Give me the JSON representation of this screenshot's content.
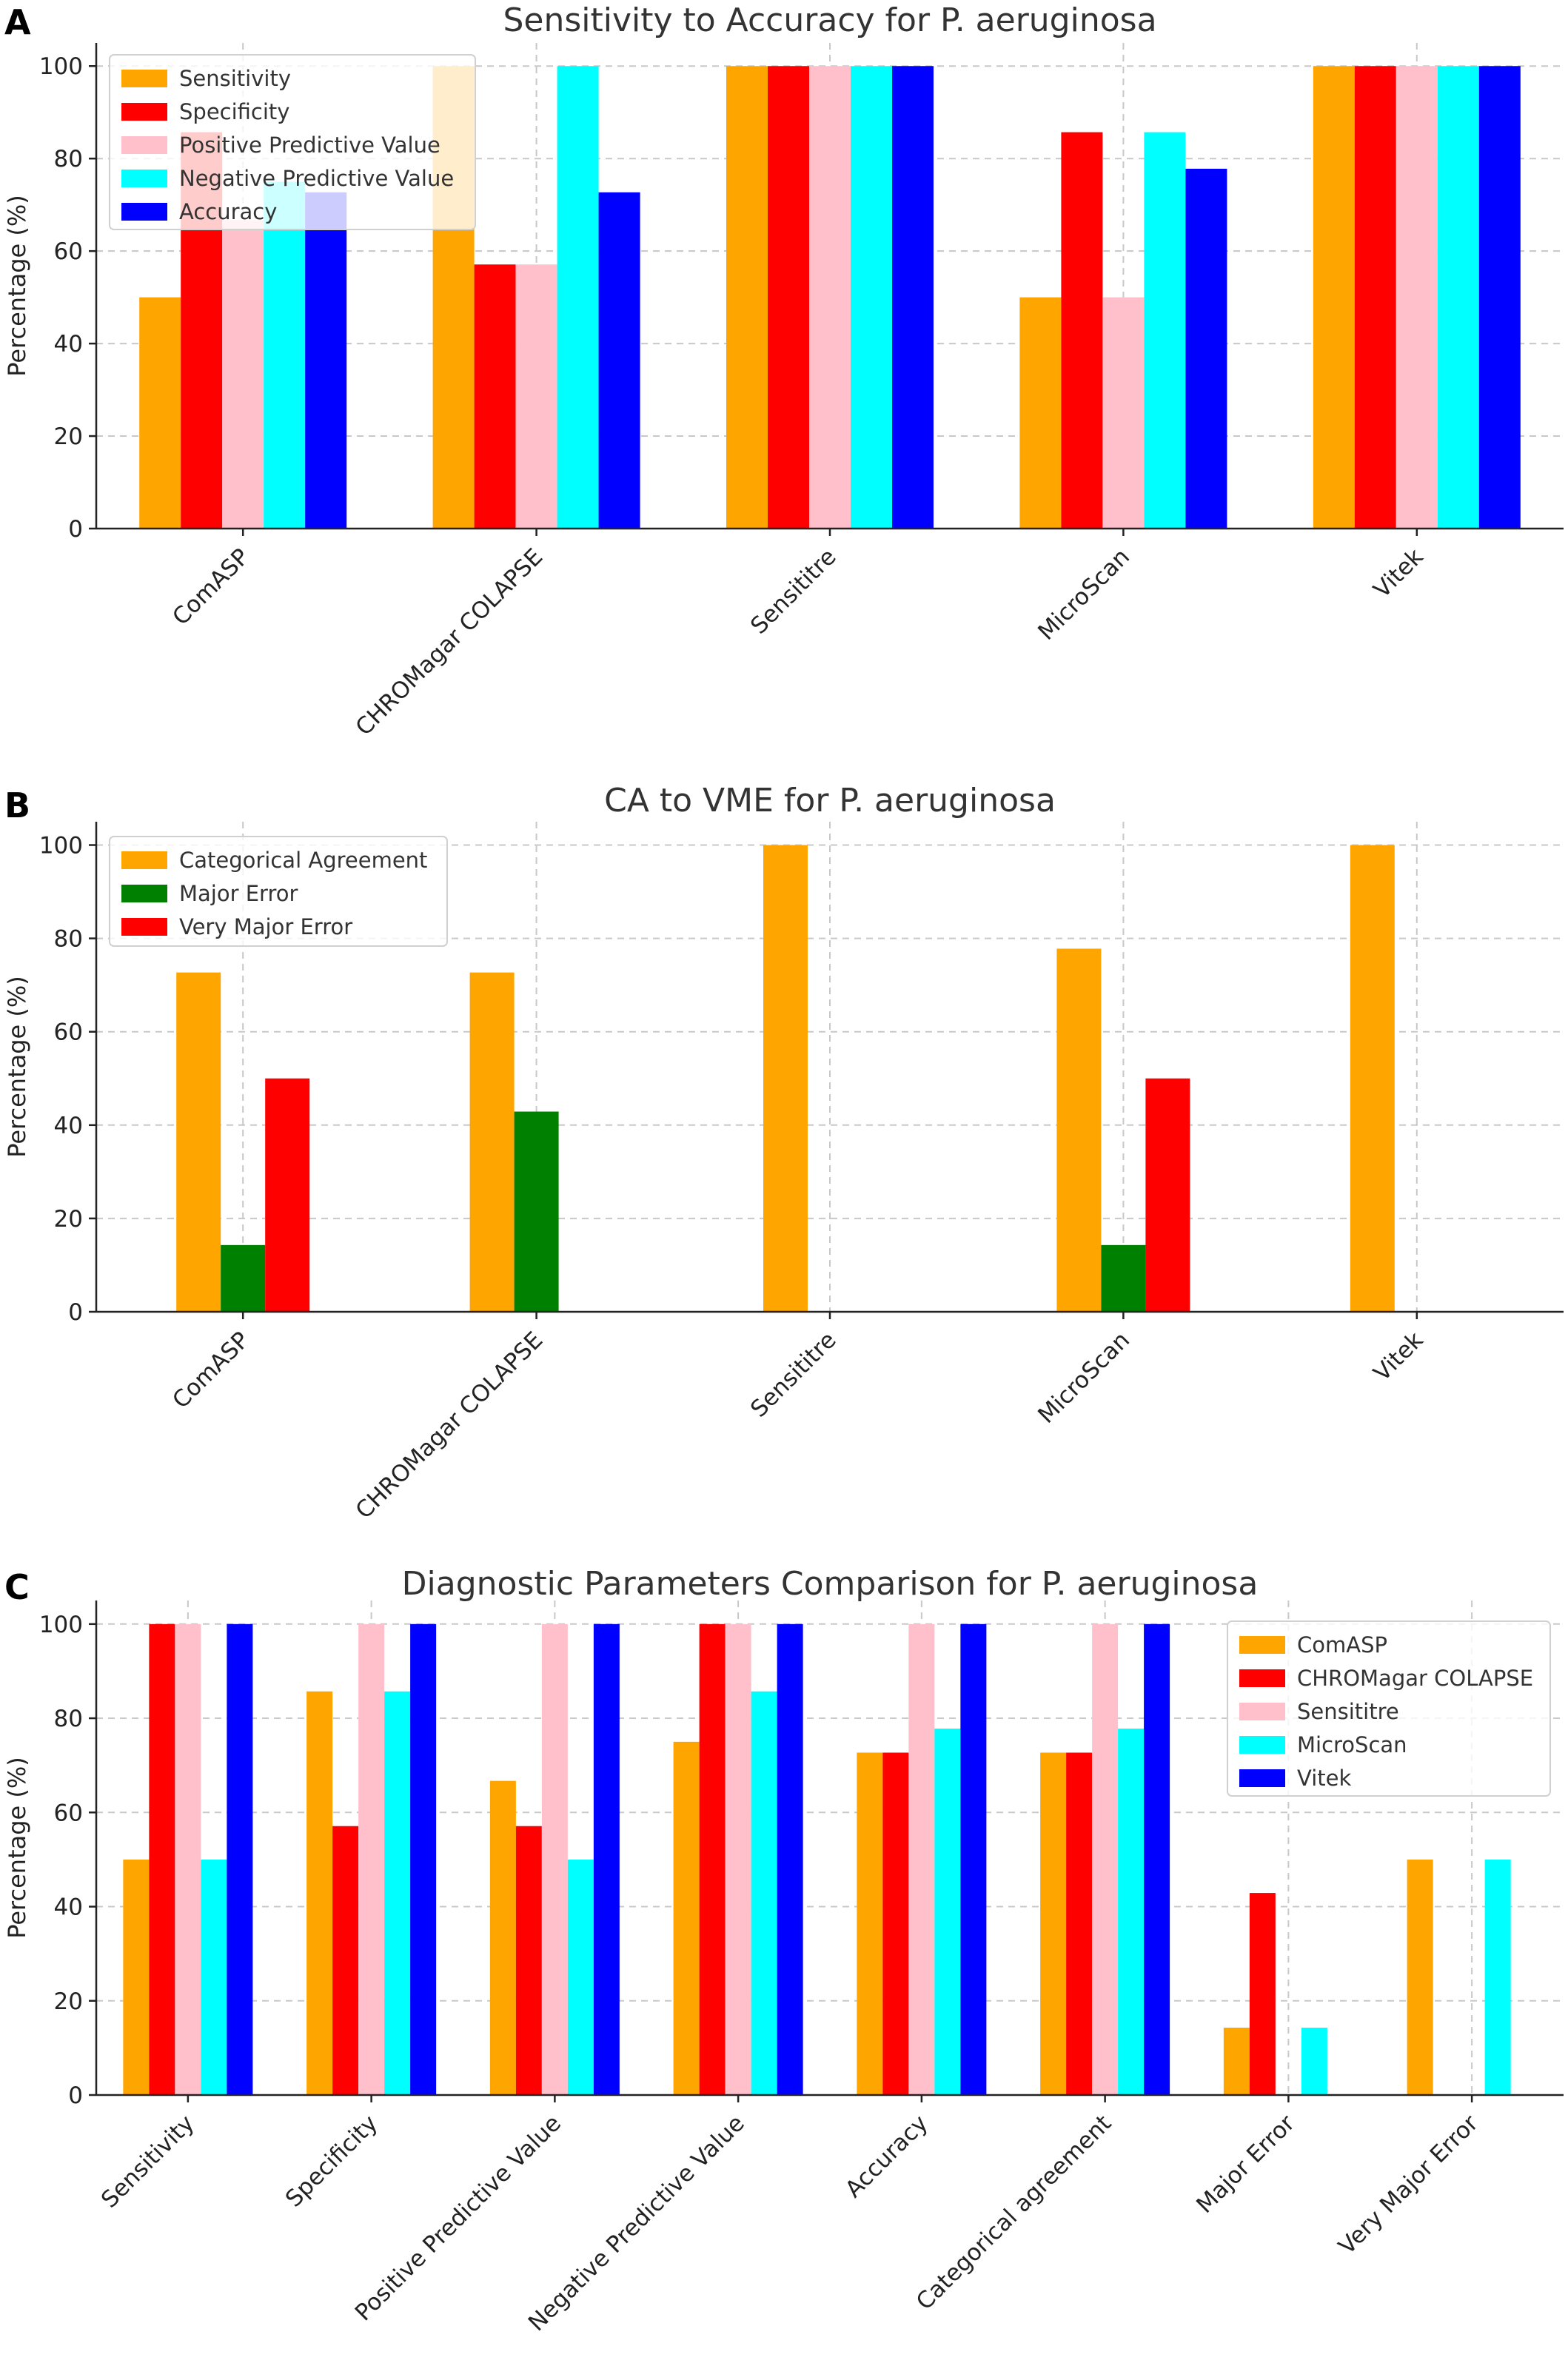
{
  "chart_data": [
    {
      "panel": "A",
      "type": "bar",
      "title": "Sensitivity to Accuracy for P. aeruginosa",
      "xlabel": "",
      "ylabel": "Percentage (%)",
      "ylim": [
        0,
        105
      ],
      "yticks": [
        0,
        20,
        40,
        60,
        80,
        100
      ],
      "grid": true,
      "legend_position": "top-left",
      "categories": [
        "ComASP",
        "CHROMagar COLAPSE",
        "Sensititre",
        "MicroScan",
        "Vitek"
      ],
      "series": [
        {
          "name": "Sensitivity",
          "color": "#FFA500",
          "values": [
            50,
            100,
            100,
            50,
            100
          ]
        },
        {
          "name": "Specificity",
          "color": "#FF0000",
          "values": [
            85.7,
            57.1,
            100,
            85.7,
            100
          ]
        },
        {
          "name": "Positive Predictive Value",
          "color": "#FFC0CB",
          "values": [
            66.7,
            57.1,
            100,
            50,
            100
          ]
        },
        {
          "name": "Negative Predictive Value",
          "color": "#00FFFF",
          "values": [
            75,
            100,
            100,
            85.7,
            100
          ]
        },
        {
          "name": "Accuracy",
          "color": "#0000FF",
          "values": [
            72.7,
            72.7,
            100,
            77.8,
            100
          ]
        }
      ]
    },
    {
      "panel": "B",
      "type": "bar",
      "title": "CA to VME for P. aeruginosa",
      "xlabel": "",
      "ylabel": "Percentage (%)",
      "ylim": [
        0,
        105
      ],
      "yticks": [
        0,
        20,
        40,
        60,
        80,
        100
      ],
      "grid": true,
      "legend_position": "top-left",
      "categories": [
        "ComASP",
        "CHROMagar COLAPSE",
        "Sensititre",
        "MicroScan",
        "Vitek"
      ],
      "series": [
        {
          "name": "Categorical Agreement",
          "color": "#FFA500",
          "values": [
            72.7,
            72.7,
            100,
            77.8,
            100
          ]
        },
        {
          "name": "Major Error",
          "color": "#008000",
          "values": [
            14.3,
            42.9,
            0,
            14.3,
            0
          ]
        },
        {
          "name": "Very Major Error",
          "color": "#FF0000",
          "values": [
            50,
            0,
            0,
            50,
            0
          ]
        }
      ]
    },
    {
      "panel": "C",
      "type": "bar",
      "title": "Diagnostic Parameters Comparison for P. aeruginosa",
      "xlabel": "",
      "ylabel": "Percentage (%)",
      "ylim": [
        0,
        105
      ],
      "yticks": [
        0,
        20,
        40,
        60,
        80,
        100
      ],
      "grid": true,
      "legend_position": "top-right",
      "categories": [
        "Sensitivity",
        "Specificity",
        "Positive Predictive Value",
        "Negative Predictive Value",
        "Accuracy",
        "Categorical agreement",
        "Major Error",
        "Very Major Error"
      ],
      "series": [
        {
          "name": "ComASP",
          "color": "#FFA500",
          "values": [
            50,
            85.7,
            66.7,
            75,
            72.7,
            72.7,
            14.3,
            50
          ]
        },
        {
          "name": "CHROMagar COLAPSE",
          "color": "#FF0000",
          "values": [
            100,
            57.1,
            57.1,
            100,
            72.7,
            72.7,
            42.9,
            0
          ]
        },
        {
          "name": "Sensititre",
          "color": "#FFC0CB",
          "values": [
            100,
            100,
            100,
            100,
            100,
            100,
            0,
            0
          ]
        },
        {
          "name": "MicroScan",
          "color": "#00FFFF",
          "values": [
            50,
            85.7,
            50,
            85.7,
            77.8,
            77.8,
            14.3,
            50
          ]
        },
        {
          "name": "Vitek",
          "color": "#0000FF",
          "values": [
            100,
            100,
            100,
            100,
            100,
            100,
            0,
            0
          ]
        }
      ]
    }
  ]
}
